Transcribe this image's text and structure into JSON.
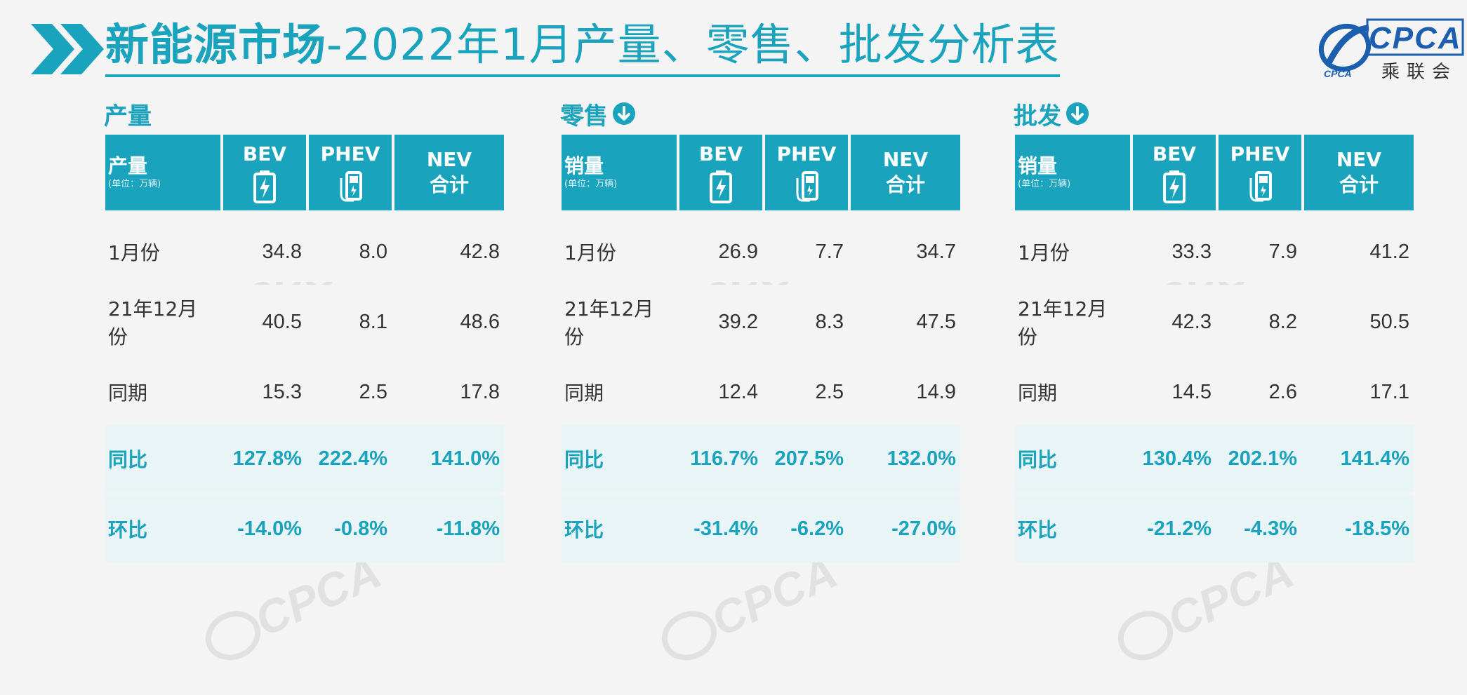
{
  "header": {
    "title_bold": "新能源市场",
    "title_rest": "-2022年1月产量、零售、批发分析表",
    "logo_text": "CPCA",
    "logo_sub": "乘联会"
  },
  "colors": {
    "accent": "#1aa3bd",
    "logo_blue": "#1b5fae",
    "background": "#f4f4f4"
  },
  "panels": [
    {
      "title": "产量",
      "has_down_icon": false,
      "header": {
        "label": "产量",
        "unit": "(单位：万辆)",
        "bev": "BEV",
        "phev": "PHEV",
        "nev1": "NEV",
        "nev2": "合计"
      },
      "rows": [
        {
          "label": "1月份",
          "bev": "34.8",
          "phev": "8.0",
          "nev": "42.8"
        },
        {
          "label": "21年12月份",
          "bev": "40.5",
          "phev": "8.1",
          "nev": "48.6"
        },
        {
          "label": "同期",
          "bev": "15.3",
          "phev": "2.5",
          "nev": "17.8"
        },
        {
          "label": "同比",
          "bev": "127.8%",
          "phev": "222.4%",
          "nev": "141.0%"
        },
        {
          "label": "环比",
          "bev": "-14.0%",
          "phev": "-0.8%",
          "nev": "-11.8%"
        }
      ]
    },
    {
      "title": "零售",
      "has_down_icon": true,
      "header": {
        "label": "销量",
        "unit": "(单位：万辆)",
        "bev": "BEV",
        "phev": "PHEV",
        "nev1": "NEV",
        "nev2": "合计"
      },
      "rows": [
        {
          "label": "1月份",
          "bev": "26.9",
          "phev": "7.7",
          "nev": "34.7"
        },
        {
          "label": "21年12月份",
          "bev": "39.2",
          "phev": "8.3",
          "nev": "47.5"
        },
        {
          "label": "同期",
          "bev": "12.4",
          "phev": "2.5",
          "nev": "14.9"
        },
        {
          "label": "同比",
          "bev": "116.7%",
          "phev": "207.5%",
          "nev": "132.0%"
        },
        {
          "label": "环比",
          "bev": "-31.4%",
          "phev": "-6.2%",
          "nev": "-27.0%"
        }
      ]
    },
    {
      "title": "批发",
      "has_down_icon": true,
      "header": {
        "label": "销量",
        "unit": "(单位：万辆)",
        "bev": "BEV",
        "phev": "PHEV",
        "nev1": "NEV",
        "nev2": "合计"
      },
      "rows": [
        {
          "label": "1月份",
          "bev": "33.3",
          "phev": "7.9",
          "nev": "41.2"
        },
        {
          "label": "21年12月份",
          "bev": "42.3",
          "phev": "8.2",
          "nev": "50.5"
        },
        {
          "label": "同期",
          "bev": "14.5",
          "phev": "2.6",
          "nev": "17.1"
        },
        {
          "label": "同比",
          "bev": "130.4%",
          "phev": "202.1%",
          "nev": "141.4%"
        },
        {
          "label": "环比",
          "bev": "-21.2%",
          "phev": "-4.3%",
          "nev": "-18.5%"
        }
      ]
    }
  ]
}
